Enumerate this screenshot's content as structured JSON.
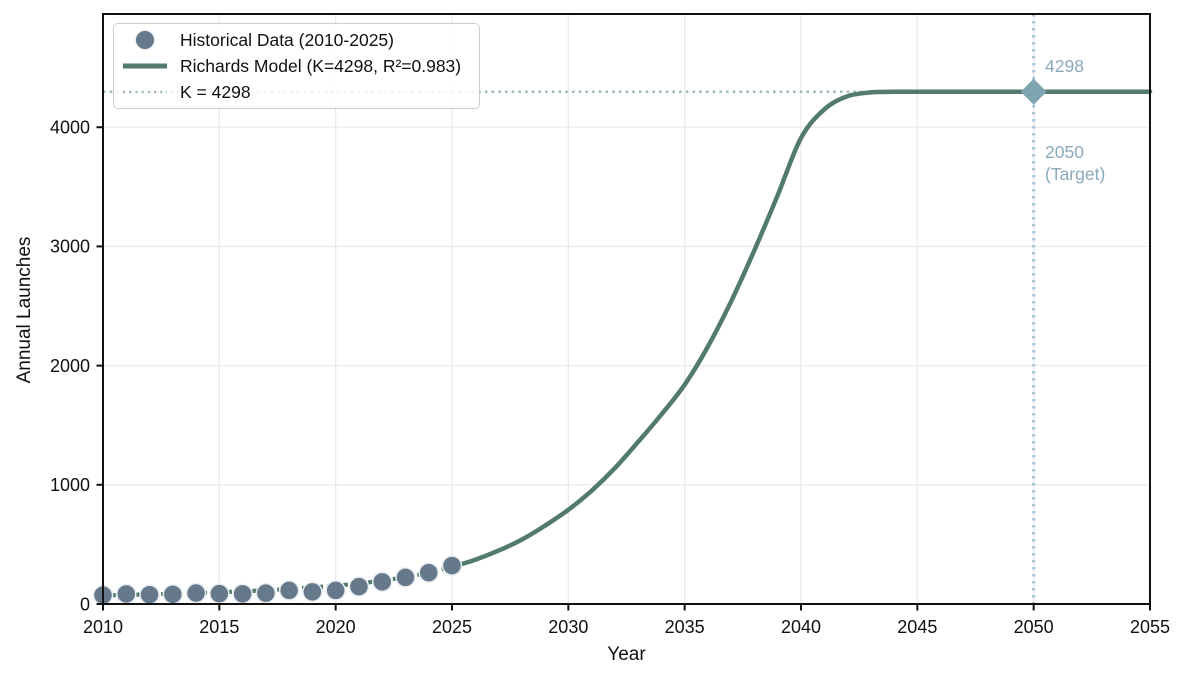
{
  "figure": {
    "kind": "static-plot",
    "background": "#ffffff"
  },
  "colors": {
    "background": "#ffffff",
    "grid": "#ebebeb",
    "spine": "#111111",
    "text": "#111111",
    "historical_point": "#66798b",
    "historical_point_edge": "#e8edf2",
    "model_line": "#527a6e",
    "k_line": "#9cb8af",
    "target_line": "#a9c4d2",
    "target_marker": "#7ea3b1",
    "annotation_text": "#8aa9ba",
    "legend_border": "#cccccc"
  },
  "chart_data": {
    "type": "line",
    "title": "",
    "xlabel": "Year",
    "ylabel": "Annual Launches",
    "xlim": [
      2010,
      2055
    ],
    "ylim": [
      0,
      4950
    ],
    "xticks": [
      2010,
      2015,
      2020,
      2025,
      2030,
      2035,
      2040,
      2045,
      2050,
      2055
    ],
    "yticks": [
      0,
      1000,
      2000,
      3000,
      4000
    ],
    "grid": true,
    "legend_position": "upper left",
    "series": [
      {
        "name": "Historical Data (2010-2025)",
        "type": "scatter",
        "color": "#66798b",
        "x": [
          2010,
          2011,
          2012,
          2013,
          2014,
          2015,
          2016,
          2017,
          2018,
          2019,
          2020,
          2021,
          2022,
          2023,
          2024,
          2025
        ],
        "y": [
          74,
          84,
          78,
          81,
          92,
          87,
          85,
          91,
          114,
          102,
          114,
          146,
          186,
          223,
          263,
          322
        ]
      },
      {
        "name": "Richards Model (K=4298, R²=0.983)",
        "type": "line",
        "color": "#527a6e",
        "dashed_until": 2025,
        "x": [
          2010,
          2011,
          2012,
          2013,
          2014,
          2015,
          2016,
          2017,
          2018,
          2019,
          2020,
          2021,
          2022,
          2023,
          2024,
          2025,
          2026,
          2027,
          2028,
          2029,
          2030,
          2031,
          2032,
          2033,
          2034,
          2035,
          2036,
          2037,
          2038,
          2039,
          2040,
          2041,
          2042,
          2043,
          2044,
          2045,
          2050,
          2055
        ],
        "y": [
          72,
          76,
          81,
          86,
          92,
          98,
          106,
          115,
          126,
          139,
          154,
          172,
          196,
          226,
          263,
          312,
          372,
          448,
          540,
          658,
          790,
          950,
          1140,
          1360,
          1590,
          1840,
          2160,
          2540,
          2970,
          3430,
          3910,
          4150,
          4260,
          4292,
          4297,
          4298,
          4298,
          4298
        ]
      },
      {
        "name": "K = 4298",
        "type": "hline",
        "color": "#9cb8af",
        "y": 4298
      }
    ],
    "target": {
      "x": 2050,
      "y": 4298,
      "marker": "diamond",
      "line_color": "#a9c4d2",
      "marker_color": "#7ea3b1",
      "label_value": "4298",
      "label_year": "2050",
      "label_caption": "(Target)",
      "label_color": "#8aa9ba"
    }
  }
}
